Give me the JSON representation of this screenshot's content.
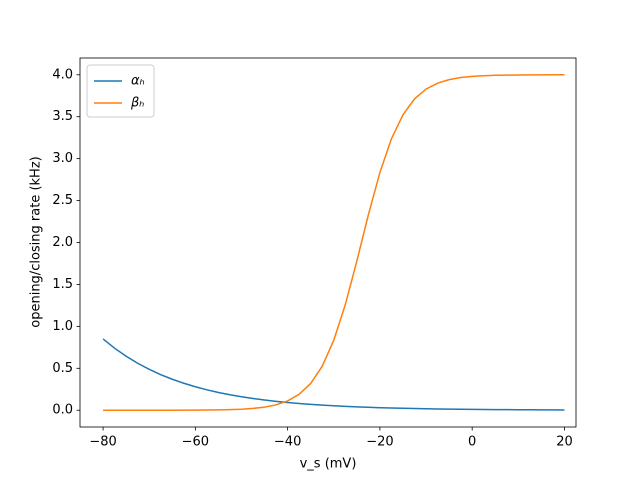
{
  "chart_data": {
    "type": "line",
    "xlabel": "v_s (mV)",
    "ylabel": "opening/closing rate (kHz)",
    "x": [
      -80,
      -77.5,
      -75,
      -72.5,
      -70,
      -67.5,
      -65,
      -62.5,
      -60,
      -57.5,
      -55,
      -52.5,
      -50,
      -47.5,
      -45,
      -42.5,
      -40,
      -37.5,
      -35,
      -32.5,
      -30,
      -27.5,
      -25,
      -22.5,
      -20,
      -17.5,
      -15,
      -12.5,
      -10,
      -7.5,
      -5,
      -2.5,
      0,
      2.5,
      5,
      7.5,
      10,
      12.5,
      15,
      17.5,
      20
    ],
    "series": [
      {
        "name": "αₕ",
        "color": "#1f77b4",
        "values": [
          0.85,
          0.7398,
          0.6438,
          0.5603,
          0.4877,
          0.4244,
          0.3694,
          0.3215,
          0.2798,
          0.2435,
          0.2119,
          0.1845,
          0.1605,
          0.1398,
          0.1216,
          0.1059,
          0.0921,
          0.0802,
          0.0698,
          0.0607,
          0.0529,
          0.046,
          0.04,
          0.0349,
          0.0303,
          0.0264,
          0.023,
          0.02,
          0.0174,
          0.0151,
          0.0132,
          0.0115,
          0.01,
          0.0087,
          0.0076,
          0.0066,
          0.0057,
          0.005,
          0.0043,
          0.0038,
          0.0033
        ]
      },
      {
        "name": "βₕ",
        "color": "#ff7f0e",
        "values": [
          0,
          0,
          0,
          0.0001,
          0.0001,
          0.0002,
          0.0004,
          0.0008,
          0.0013,
          0.0023,
          0.0041,
          0.0071,
          0.0124,
          0.0215,
          0.0372,
          0.0645,
          0.111,
          0.19,
          0.319,
          0.525,
          0.835,
          1.259,
          1.779,
          2.33,
          2.835,
          3.237,
          3.523,
          3.712,
          3.829,
          3.9,
          3.942,
          3.967,
          3.981,
          3.989,
          3.994,
          3.996,
          3.998,
          3.999,
          3.999,
          4.0,
          4.0
        ]
      }
    ],
    "xlim": [
      -85,
      22.5
    ],
    "ylim": [
      -0.2,
      4.2
    ],
    "xticks": [
      {
        "value": -80,
        "label": "−80"
      },
      {
        "value": -60,
        "label": "−60"
      },
      {
        "value": -40,
        "label": "−40"
      },
      {
        "value": -20,
        "label": "−20"
      },
      0,
      20
    ],
    "yticks": [
      {
        "value": 0,
        "label": "0.0"
      },
      0.5,
      {
        "value": 1,
        "label": "1.0"
      },
      1.5,
      {
        "value": 2,
        "label": "2.0"
      },
      2.5,
      {
        "value": 3,
        "label": "3.0"
      },
      3.5,
      {
        "value": 4,
        "label": "4.0"
      }
    ],
    "legend": "upper left",
    "grid": false
  }
}
